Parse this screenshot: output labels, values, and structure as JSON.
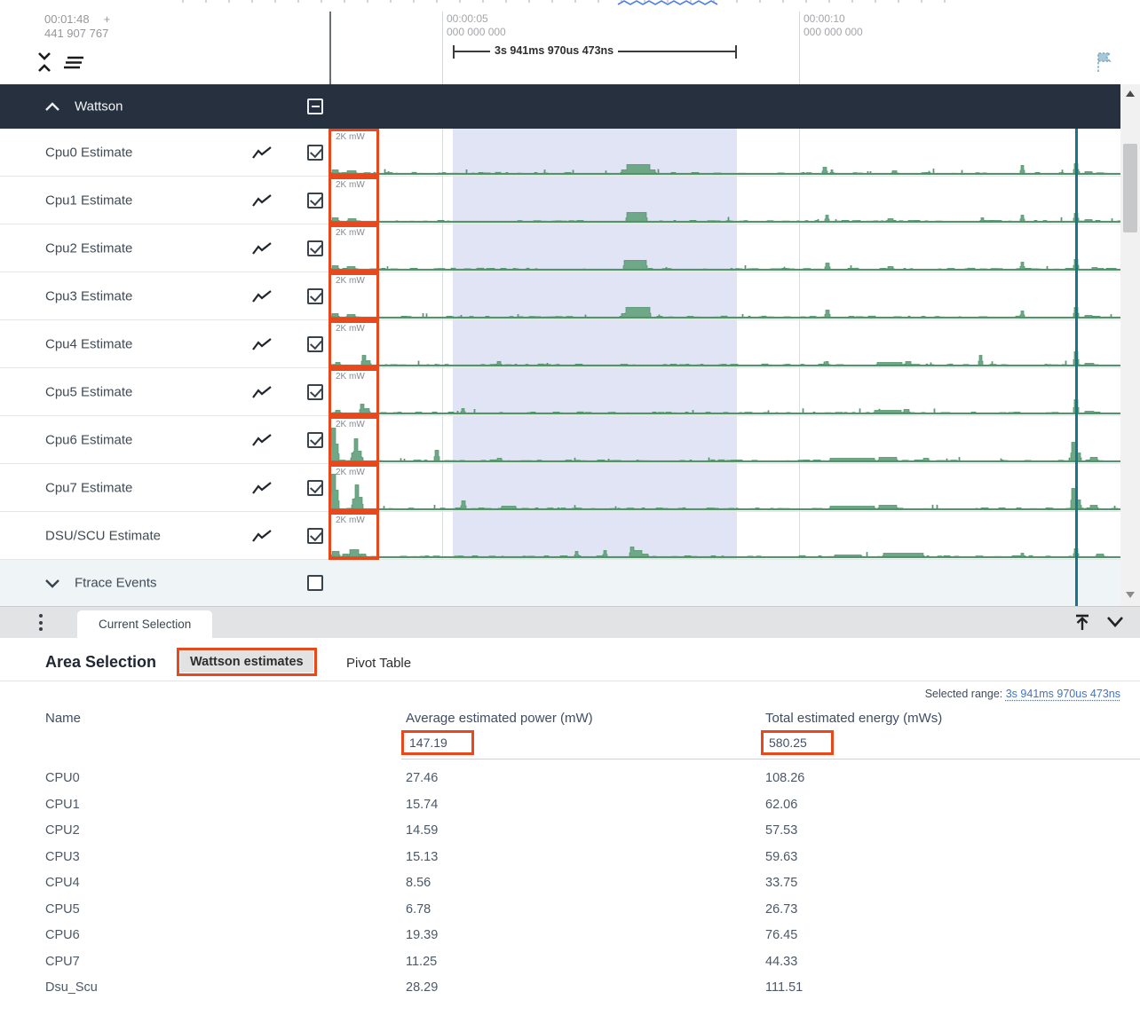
{
  "timeline": {
    "clock": "00:01:48",
    "plus": "+",
    "clock_ns": "441 907 767",
    "tick1": {
      "t": "00:00:05",
      "ns": "000 000 000"
    },
    "tick2": {
      "t": "00:00:10",
      "ns": "000 000 000"
    },
    "bracket_label": "3s 941ms 970us 473ns"
  },
  "group": {
    "label": "Wattson",
    "checkbox": "indeterminate"
  },
  "tracks": [
    {
      "name": "Cpu0 Estimate",
      "scale": "2K mW",
      "checked": true,
      "waveform": {
        "seed": 11,
        "features": [
          [
            374,
            7,
            5
          ],
          [
            391,
            10,
            4
          ],
          [
            700,
            6,
            5
          ],
          [
            706,
            26,
            11
          ],
          [
            733,
            5,
            5
          ],
          [
            927,
            4,
            8
          ],
          [
            936,
            2,
            5
          ],
          [
            1005,
            5,
            4
          ],
          [
            1150,
            3,
            10
          ],
          [
            1210,
            4,
            12
          ],
          [
            1222,
            8,
            3
          ]
        ]
      }
    },
    {
      "name": "Cpu1 Estimate",
      "scale": "2K mW",
      "checked": true,
      "waveform": {
        "seed": 22,
        "features": [
          [
            374,
            7,
            5
          ],
          [
            392,
            9,
            4
          ],
          [
            706,
            22,
            11
          ],
          [
            930,
            3,
            8
          ],
          [
            1000,
            6,
            4
          ],
          [
            1105,
            3,
            5
          ],
          [
            1150,
            3,
            8
          ],
          [
            1210,
            4,
            10
          ],
          [
            1222,
            8,
            3
          ]
        ]
      }
    },
    {
      "name": "Cpu2 Estimate",
      "scale": "2K mW",
      "checked": true,
      "waveform": {
        "seed": 33,
        "features": [
          [
            374,
            7,
            5
          ],
          [
            391,
            9,
            4
          ],
          [
            703,
            25,
            11
          ],
          [
            930,
            4,
            8
          ],
          [
            1000,
            6,
            4
          ],
          [
            1150,
            3,
            9
          ],
          [
            1210,
            4,
            12
          ],
          [
            1230,
            6,
            3
          ]
        ]
      }
    },
    {
      "name": "Cpu3 Estimate",
      "scale": "2K mW",
      "checked": true,
      "waveform": {
        "seed": 44,
        "features": [
          [
            374,
            7,
            5
          ],
          [
            391,
            9,
            4
          ],
          [
            700,
            5,
            5
          ],
          [
            705,
            27,
            12
          ],
          [
            930,
            4,
            9
          ],
          [
            1150,
            3,
            8
          ],
          [
            1210,
            4,
            12
          ],
          [
            1222,
            8,
            3
          ]
        ]
      }
    },
    {
      "name": "Cpu4 Estimate",
      "scale": "2K mW",
      "checked": true,
      "waveform": {
        "seed": 55,
        "features": [
          [
            378,
            5,
            4
          ],
          [
            408,
            4,
            12
          ],
          [
            413,
            4,
            6
          ],
          [
            560,
            4,
            5
          ],
          [
            930,
            3,
            5
          ],
          [
            988,
            28,
            4
          ],
          [
            1020,
            6,
            5
          ],
          [
            1103,
            3,
            12
          ],
          [
            1210,
            4,
            16
          ],
          [
            1222,
            10,
            3
          ]
        ]
      }
    },
    {
      "name": "Cpu5 Estimate",
      "scale": "2K mW",
      "checked": true,
      "waveform": {
        "seed": 66,
        "features": [
          [
            378,
            5,
            4
          ],
          [
            406,
            4,
            11
          ],
          [
            411,
            5,
            6
          ],
          [
            520,
            3,
            6
          ],
          [
            985,
            30,
            4
          ],
          [
            1018,
            6,
            5
          ],
          [
            1210,
            4,
            16
          ],
          [
            1222,
            10,
            3
          ]
        ]
      }
    },
    {
      "name": "Cpu6 Estimate",
      "scale": "2K mW",
      "checked": true,
      "waveform": {
        "seed": 77,
        "features": [
          [
            373,
            5,
            38
          ],
          [
            378,
            3,
            20
          ],
          [
            396,
            3,
            10
          ],
          [
            399,
            4,
            26
          ],
          [
            403,
            4,
            12
          ],
          [
            490,
            4,
            13
          ],
          [
            560,
            5,
            4
          ],
          [
            935,
            50,
            4
          ],
          [
            990,
            20,
            5
          ],
          [
            1040,
            6,
            4
          ],
          [
            1207,
            5,
            22
          ],
          [
            1213,
            4,
            10
          ],
          [
            1228,
            8,
            5
          ]
        ]
      }
    },
    {
      "name": "Cpu7 Estimate",
      "scale": "2K mW",
      "checked": true,
      "waveform": {
        "seed": 88,
        "features": [
          [
            373,
            5,
            40
          ],
          [
            378,
            3,
            22
          ],
          [
            397,
            3,
            12
          ],
          [
            400,
            4,
            28
          ],
          [
            404,
            4,
            14
          ],
          [
            520,
            4,
            10
          ],
          [
            565,
            16,
            4
          ],
          [
            935,
            50,
            4
          ],
          [
            990,
            20,
            5
          ],
          [
            1207,
            5,
            24
          ],
          [
            1213,
            4,
            11
          ],
          [
            1228,
            8,
            5
          ]
        ]
      }
    },
    {
      "name": "DSU/SCU Estimate",
      "scale": "2K mW",
      "checked": true,
      "waveform": {
        "seed": 99,
        "features": [
          [
            374,
            8,
            7
          ],
          [
            386,
            6,
            4
          ],
          [
            394,
            10,
            9
          ],
          [
            406,
            6,
            4
          ],
          [
            648,
            3,
            7
          ],
          [
            680,
            3,
            8
          ],
          [
            710,
            4,
            12
          ],
          [
            714,
            9,
            8
          ],
          [
            723,
            7,
            4
          ],
          [
            940,
            30,
            3
          ],
          [
            995,
            45,
            5
          ],
          [
            1150,
            3,
            5
          ],
          [
            1210,
            4,
            10
          ],
          [
            1235,
            8,
            4
          ]
        ]
      }
    }
  ],
  "ftrace": {
    "label": "Ftrace Events",
    "checked": false
  },
  "tabbar": {
    "current_tab": "Current Selection"
  },
  "panel": {
    "title": "Area Selection",
    "tab_wattson": "Wattson estimates",
    "tab_pivot": "Pivot Table",
    "selected_range_label": "Selected range:",
    "selected_range_value": "3s 941ms 970us 473ns",
    "table": {
      "columns": [
        "Name",
        "Average estimated power (mW)",
        "Total estimated energy (mWs)"
      ],
      "totals": {
        "avg_power": "147.19",
        "total_energy": "580.25"
      },
      "rows": [
        [
          "CPU0",
          "27.46",
          "108.26"
        ],
        [
          "CPU1",
          "15.74",
          "62.06"
        ],
        [
          "CPU2",
          "14.59",
          "57.53"
        ],
        [
          "CPU3",
          "15.13",
          "59.63"
        ],
        [
          "CPU4",
          "8.56",
          "33.75"
        ],
        [
          "CPU5",
          "6.78",
          "26.73"
        ],
        [
          "CPU6",
          "19.39",
          "76.45"
        ],
        [
          "CPU7",
          "11.25",
          "44.33"
        ],
        [
          "Dsu_Scu",
          "28.29",
          "111.51"
        ]
      ]
    }
  },
  "colors": {
    "annotation_orange": "#e9481c",
    "waveform_green_fill": "#6fa888",
    "waveform_green_stroke": "#4f9168",
    "selection_lavender": "#c4cbec",
    "cursor_teal": "#17768a",
    "header_dark": "#26303e",
    "link_blue": "#3d74c6"
  }
}
